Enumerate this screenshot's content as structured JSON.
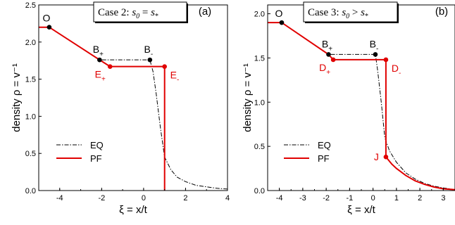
{
  "chart_data": [
    {
      "type": "line",
      "case_label": "Case 2:",
      "case_formula": "s_0 = s_*",
      "panel_tag": "(a)",
      "xlabel": "ξ = x/t",
      "ylabel": "density ρ = v⁻¹",
      "xlim": [
        -5,
        4
      ],
      "ylim": [
        0,
        2.5
      ],
      "xticks": [
        -4,
        -2,
        0,
        2,
        4
      ],
      "yticks": [
        0.0,
        0.5,
        1.0,
        1.5,
        2.0,
        2.5
      ],
      "legend": {
        "placement": "lower-left",
        "entries": [
          "EQ",
          "PF"
        ]
      },
      "series": [
        {
          "name": "EQ",
          "style": "dash-dot",
          "color": "#000000",
          "x": [
            -5,
            -4.5,
            -2.1,
            0.3,
            0.45,
            0.6,
            0.8,
            1.0,
            1.3,
            1.6,
            2.0,
            2.5,
            3.0,
            3.5,
            4.0
          ],
          "y": [
            2.2,
            2.2,
            1.76,
            1.76,
            1.6,
            1.3,
            0.85,
            0.45,
            0.28,
            0.18,
            0.12,
            0.07,
            0.05,
            0.03,
            0.02
          ]
        },
        {
          "name": "PF",
          "style": "solid",
          "color": "#e00000",
          "x": [
            -5,
            -4.5,
            -2.1,
            -1.6,
            1.0,
            1.0
          ],
          "y": [
            2.2,
            2.2,
            1.76,
            1.67,
            1.67,
            0.0
          ]
        }
      ],
      "points": [
        {
          "label": "O",
          "sub": "",
          "x": -4.5,
          "y": 2.2,
          "color": "#000000"
        },
        {
          "label": "B",
          "sub": "+",
          "x": -2.1,
          "y": 1.76,
          "color": "#000000"
        },
        {
          "label": "B",
          "sub": "-",
          "x": 0.3,
          "y": 1.76,
          "color": "#000000"
        },
        {
          "label": "E",
          "sub": "+",
          "x": -1.6,
          "y": 1.67,
          "color": "#e00000"
        },
        {
          "label": "E",
          "sub": "-",
          "x": 1.0,
          "y": 1.67,
          "color": "#e00000"
        }
      ]
    },
    {
      "type": "line",
      "case_label": "Case 3:",
      "case_formula": "s_0 > s_*",
      "panel_tag": "(b)",
      "xlabel": "ξ = x/t",
      "ylabel": "density ρ = v⁻¹",
      "xlim": [
        -4.5,
        3.5
      ],
      "ylim": [
        0,
        2.1
      ],
      "xticks": [
        -4,
        -3,
        -2,
        -1,
        0,
        1,
        2,
        3
      ],
      "yticks": [
        0.0,
        0.5,
        1.0,
        1.5,
        2.0
      ],
      "legend": {
        "placement": "lower-left",
        "entries": [
          "EQ",
          "PF"
        ]
      },
      "series": [
        {
          "name": "EQ",
          "style": "dash-dot",
          "color": "#000000",
          "x": [
            -4.5,
            -3.9,
            -1.9,
            0.1,
            0.2,
            0.35,
            0.5,
            0.7,
            1.0,
            1.4,
            1.8,
            2.2,
            2.6,
            3.0,
            3.5
          ],
          "y": [
            1.9,
            1.9,
            1.54,
            1.54,
            1.35,
            1.0,
            0.6,
            0.45,
            0.32,
            0.2,
            0.13,
            0.08,
            0.05,
            0.03,
            0.01
          ]
        },
        {
          "name": "PF",
          "style": "solid",
          "color": "#e00000",
          "x": [
            -4.5,
            -3.9,
            -1.9,
            -1.7,
            0.55,
            0.55,
            0.8,
            1.0,
            1.4,
            1.8,
            2.2,
            2.6,
            3.0,
            3.5
          ],
          "y": [
            1.9,
            1.9,
            1.54,
            1.48,
            1.48,
            0.38,
            0.3,
            0.25,
            0.17,
            0.11,
            0.07,
            0.04,
            0.02,
            0.01
          ]
        }
      ],
      "points": [
        {
          "label": "O",
          "sub": "",
          "x": -3.9,
          "y": 1.9,
          "color": "#000000"
        },
        {
          "label": "B",
          "sub": "+",
          "x": -1.9,
          "y": 1.54,
          "color": "#000000"
        },
        {
          "label": "B",
          "sub": "-",
          "x": 0.1,
          "y": 1.54,
          "color": "#000000"
        },
        {
          "label": "D",
          "sub": "+",
          "x": -1.7,
          "y": 1.48,
          "color": "#e00000"
        },
        {
          "label": "D",
          "sub": "-",
          "x": 0.55,
          "y": 1.48,
          "color": "#e00000"
        },
        {
          "label": "J",
          "sub": "",
          "x": 0.55,
          "y": 0.38,
          "color": "#e00000"
        }
      ]
    }
  ]
}
